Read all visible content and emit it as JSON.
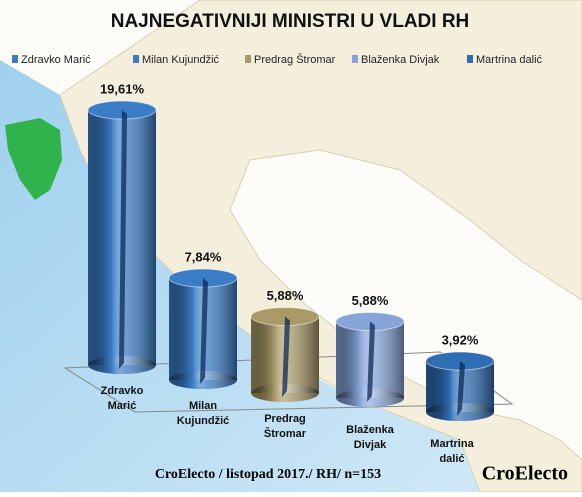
{
  "chart_data": {
    "type": "bar",
    "title": "NAJNEGATIVNIJI MINISTRI U VLADI RH",
    "categories": [
      "Zdravko Marić",
      "Milan Kujundžić",
      "Predrag Štromar",
      "Blaženka Divjak",
      "Martrina dalić"
    ],
    "values": [
      19.61,
      7.84,
      5.88,
      5.88,
      3.92
    ],
    "value_labels": [
      "19,61%",
      "7,84%",
      "5,88%",
      "5,88%",
      "3,92%"
    ],
    "colors": [
      "#3a7cc6",
      "#3a7cc6",
      "#a99a68",
      "#86a4d8",
      "#2f6db4"
    ],
    "source": "CroElecto / listopad 2017./ RH/ n=153",
    "watermark": "CroElecto"
  }
}
